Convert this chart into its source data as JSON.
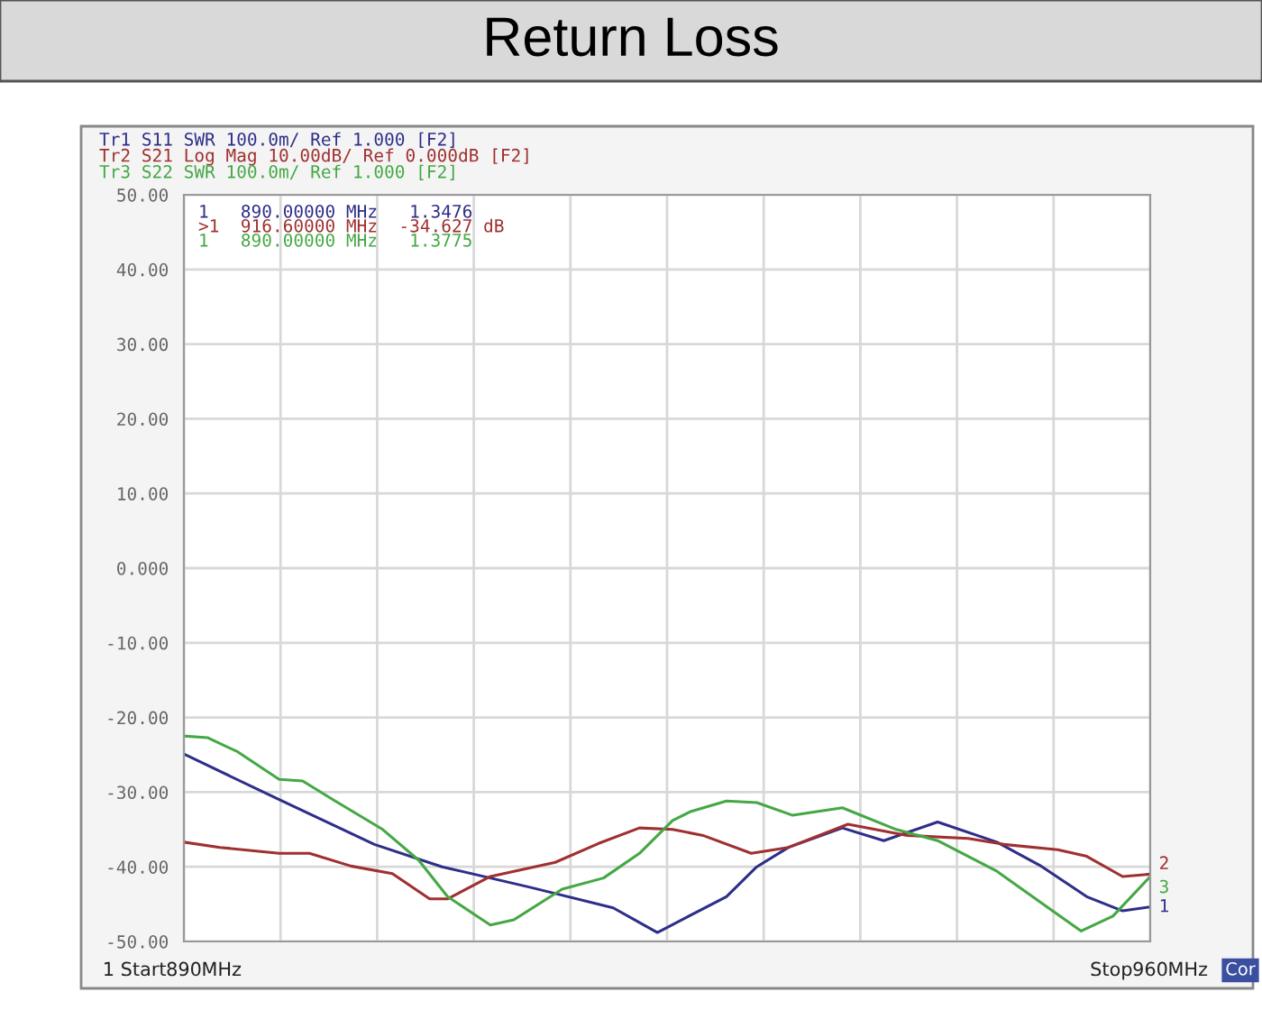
{
  "chart_data": {
    "type": "line",
    "title": "Return Loss",
    "xlim": [
      890,
      960
    ],
    "xticks": [
      {
        "value": 890,
        "label": "890"
      },
      {
        "value": 897,
        "label": null
      },
      {
        "value": 904,
        "label": null
      },
      {
        "value": 911,
        "label": null
      },
      {
        "value": 918,
        "label": null
      },
      {
        "value": 925,
        "label": null
      },
      {
        "value": 932,
        "label": null
      },
      {
        "value": 939,
        "label": null
      },
      {
        "value": 946,
        "label": null
      },
      {
        "value": 953,
        "label": null
      },
      {
        "value": 960,
        "label": "960"
      }
    ],
    "ylim": [
      -50,
      50
    ],
    "yticks": [
      {
        "value": 50,
        "label": "50.00"
      },
      {
        "value": 40,
        "label": "40.00"
      },
      {
        "value": 30,
        "label": "30.00"
      },
      {
        "value": 20,
        "label": "20.00"
      },
      {
        "value": 10,
        "label": "10.00"
      },
      {
        "value": 0,
        "label": "0.000"
      },
      {
        "value": -10,
        "label": "-10.00"
      },
      {
        "value": -20,
        "label": "-20.00"
      },
      {
        "value": -30,
        "label": "-30.00"
      },
      {
        "value": -40,
        "label": "-40.00"
      },
      {
        "value": -50,
        "label": "-50.00"
      }
    ],
    "grid": true,
    "legend": false,
    "line_style": "solid",
    "marker": "none",
    "series": [
      {
        "color": "#2e2e8a",
        "x": [
          890.0,
          896.9,
          903.8,
          908.7,
          915.2,
          921.1,
          924.3,
          929.3,
          931.5,
          933.8,
          937.7,
          940.7,
          944.6,
          948.9,
          952.0,
          955.4,
          958.0,
          959.9
        ],
        "values": [
          -24.9,
          -31,
          -37,
          -40,
          -42.8,
          -45.5,
          -48.8,
          -44,
          -40,
          -37.4,
          -34.8,
          -36.5,
          -34,
          -36.7,
          -39.8,
          -44,
          -45.9,
          -45.4
        ]
      },
      {
        "color": "#a03030",
        "x": [
          890.0,
          892.6,
          896.9,
          899.1,
          902.1,
          905.1,
          907.8,
          909.1,
          912.2,
          916.9,
          920.0,
          923.0,
          925.4,
          927.6,
          931.1,
          933.8,
          938.1,
          942.4,
          946.8,
          949.4,
          953.3,
          955.4,
          958.0,
          959.9
        ],
        "values": [
          -36.7,
          -37.4,
          -38.2,
          -38.2,
          -39.9,
          -40.9,
          -44.3,
          -44.3,
          -41.3,
          -39.4,
          -36.9,
          -34.8,
          -35,
          -35.8,
          -38.2,
          -37.4,
          -34.3,
          -35.8,
          -36.2,
          -37,
          -37.7,
          -38.6,
          -41.3,
          -41
        ]
      },
      {
        "color": "#44a844",
        "x": [
          890.1,
          891.7,
          893.9,
          896.9,
          898.6,
          900.8,
          904.4,
          907.0,
          909.1,
          912.2,
          913.9,
          917.4,
          920.4,
          923.0,
          925.4,
          926.7,
          929.3,
          931.5,
          934.1,
          937.7,
          941.6,
          944.6,
          948.9,
          952.0,
          955.0,
          957.3,
          959.9
        ],
        "values": [
          -22.5,
          -22.7,
          -24.6,
          -28.3,
          -28.5,
          -31,
          -35,
          -39.1,
          -44,
          -47.8,
          -47.1,
          -43,
          -41.5,
          -38.2,
          -33.8,
          -32.6,
          -31.2,
          -31.4,
          -33.1,
          -32.1,
          -35,
          -36.5,
          -40.6,
          -44.7,
          -48.6,
          -46.6,
          -41.5
        ]
      }
    ],
    "annotations": [
      "Tr1 S11 SWR 100.0m/ Ref 1.000 [F2]",
      "Tr2 S21 Log Mag 10.00dB/ Ref 0.000dB [F2]",
      "Tr3 S22 SWR 100.0m/ Ref 1.000 [F2]",
      "1   890.00000 MHz   1.3476",
      ">1  916.60000 MHz  -34.627 dB",
      "1   890.00000 MHz   1.3775",
      "Cor",
      "1",
      "2",
      "3",
      "1 Start",
      "MHz",
      "Stop",
      "MHz"
    ]
  }
}
